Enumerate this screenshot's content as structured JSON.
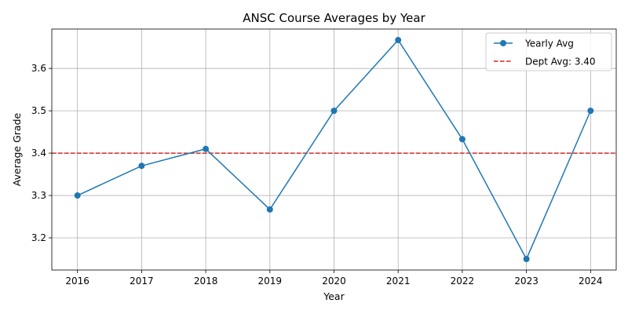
{
  "chart_data": {
    "type": "line",
    "title": "ANSC Course Averages by Year",
    "xlabel": "Year",
    "ylabel": "Average Grade",
    "x": [
      2016,
      2017,
      2018,
      2019,
      2020,
      2021,
      2022,
      2023,
      2024
    ],
    "series": [
      {
        "name": "Yearly Avg",
        "color": "#1f77b4",
        "values": [
          3.3,
          3.37,
          3.41,
          3.267,
          3.5,
          3.667,
          3.433,
          3.15,
          3.5
        ]
      }
    ],
    "reference_line": {
      "name": "Dept Avg: 3.40",
      "value": 3.4,
      "color": "#d62728",
      "style": "dashed"
    },
    "xlim": [
      2015.6,
      2024.4
    ],
    "ylim": [
      3.124,
      3.693
    ],
    "yticks": [
      "3.2",
      "3.3",
      "3.4",
      "3.5",
      "3.6"
    ],
    "xticks": [
      "2016",
      "2017",
      "2018",
      "2019",
      "2020",
      "2021",
      "2022",
      "2023",
      "2024"
    ],
    "grid": true,
    "legend_position": "top-right"
  }
}
